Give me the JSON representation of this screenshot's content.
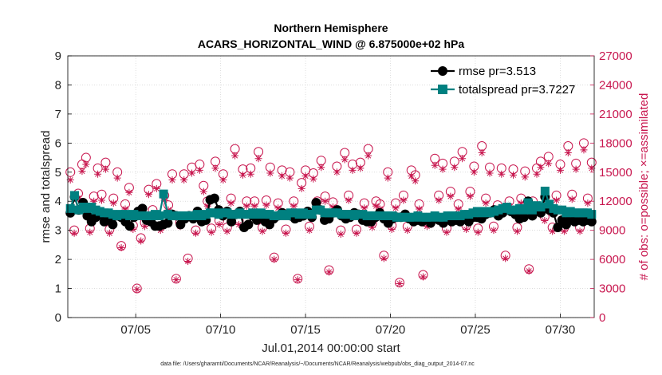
{
  "chart_data": {
    "type": "line",
    "title_line1": "Northern Hemisphere",
    "title_line2": "ACARS_HORIZONTAL_WIND @ 6.875000e+02 hPa",
    "xlabel": "Jul.01,2014 00:00:00 start",
    "ylabel_left": "rmse and totalspread",
    "ylabel_right": "# of obs: o=possible; ×=assimilated",
    "ylim_left": [
      0,
      9
    ],
    "ylim_right": [
      0,
      27000
    ],
    "xlim_days": [
      1.0,
      32.0
    ],
    "yticks_left": [
      "0",
      "1",
      "2",
      "3",
      "4",
      "5",
      "6",
      "7",
      "8",
      "9"
    ],
    "yticks_right": [
      "0",
      "3000",
      "6000",
      "9000",
      "12000",
      "15000",
      "18000",
      "21000",
      "24000",
      "27000"
    ],
    "xticks": [
      {
        "day": 5,
        "label": "07/05"
      },
      {
        "day": 10,
        "label": "07/10"
      },
      {
        "day": 15,
        "label": "07/15"
      },
      {
        "day": 20,
        "label": "07/20"
      },
      {
        "day": 25,
        "label": "07/25"
      },
      {
        "day": 30,
        "label": "07/30"
      }
    ],
    "legend": [
      "rmse pr=3.513",
      "totalspread pr=3.7227"
    ],
    "colors": {
      "rmse": "#000000",
      "totalspread": "#008080",
      "obs": "#c8174f",
      "grid": "#c8c8c8"
    },
    "series_rmse": [
      3.6,
      4.15,
      3.7,
      3.95,
      3.5,
      3.3,
      3.45,
      3.55,
      3.3,
      3.35,
      3.2,
      3.5,
      3.45,
      3.3,
      3.15,
      3.45,
      3.65,
      3.75,
      3.35,
      3.3,
      3.15,
      3.15,
      3.2,
      3.25,
      3.55,
      3.5,
      3.2,
      3.4,
      3.5,
      3.4,
      3.65,
      3.3,
      3.35,
      4.05,
      4.1,
      3.7,
      3.5,
      3.65,
      3.3,
      3.55,
      3.65,
      3.1,
      3.2,
      3.5,
      3.35,
      3.55,
      3.3,
      3.2,
      3.4,
      3.5,
      3.6,
      3.55,
      3.5,
      3.4,
      3.45,
      3.5,
      3.65,
      3.45,
      3.95,
      3.7,
      3.35,
      3.4,
      3.6,
      3.7,
      3.5,
      3.4,
      3.45,
      3.6,
      3.55,
      3.35,
      3.3,
      3.3,
      3.45,
      3.6,
      3.4,
      3.25,
      3.4,
      3.45,
      3.45,
      3.55,
      3.4,
      3.3,
      3.35,
      3.3,
      3.4,
      3.25,
      3.45,
      3.35,
      3.25,
      3.45,
      3.3,
      3.35,
      3.3,
      3.4,
      3.3,
      3.45,
      3.45,
      3.4,
      3.55,
      3.6,
      3.7,
      3.5,
      3.6,
      3.7,
      3.65,
      3.55,
      3.4,
      3.45,
      4.0,
      3.5,
      3.75,
      3.6,
      4.15,
      3.7,
      3.6,
      3.1,
      3.35,
      3.2,
      3.4,
      3.3,
      3.35,
      3.3,
      3.35,
      3.3
    ],
    "series_totalspread": [
      3.75,
      4.2,
      3.7,
      3.8,
      3.75,
      3.8,
      3.7,
      3.65,
      3.6,
      3.6,
      3.55,
      3.5,
      3.55,
      3.55,
      3.5,
      3.55,
      3.5,
      3.5,
      3.5,
      3.5,
      3.55,
      3.5,
      4.25,
      3.55,
      3.5,
      3.5,
      3.5,
      3.5,
      3.5,
      3.5,
      3.55,
      3.5,
      3.55,
      3.6,
      3.6,
      3.55,
      3.6,
      3.6,
      3.55,
      3.55,
      3.6,
      3.55,
      3.55,
      3.6,
      3.55,
      3.6,
      3.55,
      3.55,
      3.5,
      3.5,
      3.55,
      3.5,
      3.6,
      3.6,
      3.55,
      3.6,
      3.55,
      3.55,
      3.7,
      3.7,
      3.6,
      3.6,
      3.6,
      3.6,
      3.55,
      3.55,
      3.55,
      3.5,
      3.55,
      3.55,
      3.5,
      3.5,
      3.5,
      3.5,
      3.5,
      3.5,
      3.5,
      3.45,
      3.45,
      3.45,
      3.45,
      3.45,
      3.5,
      3.45,
      3.45,
      3.45,
      3.5,
      3.45,
      3.45,
      3.5,
      3.5,
      3.5,
      3.5,
      3.55,
      3.55,
      3.6,
      3.65,
      3.6,
      3.65,
      3.6,
      3.65,
      3.7,
      3.75,
      3.8,
      3.7,
      3.7,
      3.75,
      3.7,
      3.95,
      3.7,
      3.85,
      3.8,
      4.35,
      3.9,
      3.75,
      3.7,
      3.7,
      3.6,
      3.65,
      3.6,
      3.6,
      3.6,
      3.6,
      3.55
    ],
    "series_obs_possible": [
      15000,
      9000,
      12800,
      15800,
      16500,
      9200,
      12500,
      15400,
      12700,
      16000,
      9100,
      12300,
      15000,
      7400,
      11700,
      13400,
      9500,
      3000,
      8200,
      9800,
      13200,
      11100,
      13800,
      9400,
      12600,
      11600,
      14800,
      4000,
      9800,
      14800,
      6100,
      15500,
      9000,
      15800,
      13600,
      12000,
      9200,
      16100,
      10000,
      14800,
      9300,
      12300,
      17400,
      10000,
      15300,
      12000,
      15400,
      12000,
      17100,
      9300,
      12100,
      15500,
      6200,
      11800,
      15200,
      9100,
      15000,
      12000,
      4000,
      13900,
      15200,
      9400,
      14900,
      12000,
      16200,
      12500,
      4900,
      11900,
      15600,
      9000,
      17000,
      12600,
      15800,
      9100,
      16000,
      11800,
      17400,
      9700,
      12000,
      11700,
      6400,
      15000,
      9500,
      11800,
      3600,
      12600,
      9400,
      15200,
      14700,
      11700,
      4400,
      9800,
      10000,
      16400,
      12600,
      15900,
      9200,
      13000,
      16100,
      11700,
      17100,
      9500,
      13000,
      15600,
      9200,
      17700,
      12300,
      15500,
      9400,
      11600,
      15400,
      6400,
      12000,
      15300,
      9300,
      12300,
      15100,
      5000,
      12000,
      15400,
      16100,
      10400,
      16600,
      9300,
      12600,
      15800,
      9300,
      17700,
      12700,
      15900,
      9300,
      18000,
      12300,
      16000
    ],
    "series_obs_assimilated": [
      14200,
      8700,
      12300,
      15100,
      15800,
      8800,
      12000,
      14800,
      12100,
      15300,
      8700,
      11800,
      14400,
      7200,
      11200,
      12900,
      9100,
      2900,
      7900,
      9400,
      12700,
      10700,
      13300,
      9000,
      12100,
      11100,
      14200,
      3900,
      9400,
      14200,
      5800,
      14900,
      8700,
      15200,
      13000,
      11500,
      8800,
      15400,
      9600,
      14200,
      8900,
      11800,
      16700,
      9600,
      14700,
      11500,
      14800,
      11500,
      16400,
      8900,
      11600,
      14900,
      6000,
      11300,
      14600,
      8700,
      14400,
      11500,
      3900,
      13300,
      14600,
      9000,
      14300,
      11500,
      15500,
      12000,
      4700,
      11400,
      15000,
      8600,
      16300,
      12100,
      15200,
      8700,
      15400,
      11300,
      16700,
      9300,
      11500,
      11200,
      6100,
      14400,
      9100,
      11300,
      3500,
      12100,
      9000,
      14600,
      14100,
      11200,
      4200,
      9400,
      9600,
      15700,
      12100,
      15300,
      8800,
      12500,
      15500,
      11200,
      16400,
      9100,
      12500,
      15000,
      8800,
      17000,
      11800,
      14900,
      9000,
      11100,
      14800,
      6100,
      11500,
      14700,
      8900,
      11800,
      14500,
      4800,
      11500,
      14800,
      15500,
      10000,
      15900,
      8900,
      12100,
      15200,
      8900,
      17000,
      12200,
      15300,
      8900,
      17300,
      11800,
      15400
    ]
  },
  "footnote": "data file: /Users/gharamti/Documents/NCAR/Reanalysis/~/Documents/NCAR/Reanalysis/webpub/obs_diag_output_2014-07.nc"
}
